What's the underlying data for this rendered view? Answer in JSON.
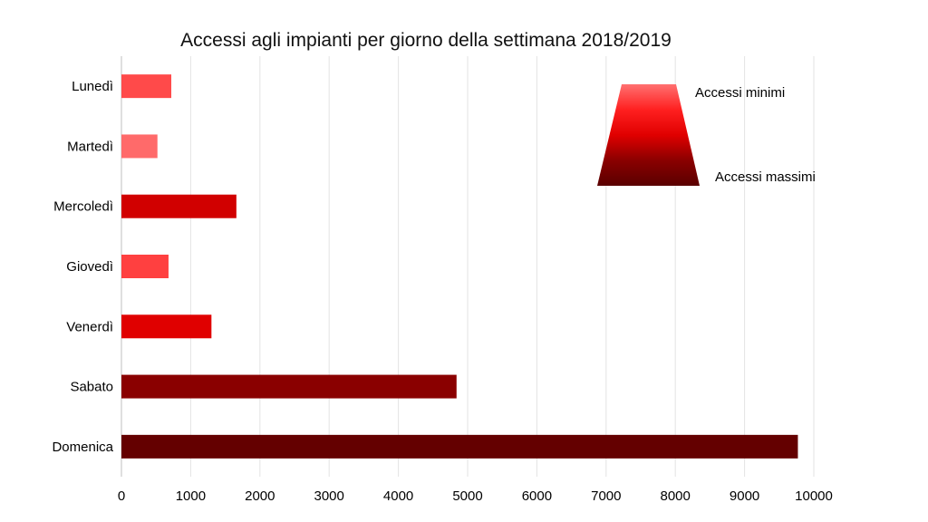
{
  "chart_data": {
    "type": "bar",
    "orientation": "horizontal",
    "title": "Accessi agli impianti per giorno della settimana 2018/2019",
    "categories": [
      "Lunedì",
      "Martedì",
      "Mercoledì",
      "Giovedì",
      "Venerdì",
      "Sabato",
      "Domenica"
    ],
    "values": [
      720,
      520,
      1660,
      680,
      1300,
      4840,
      9770
    ],
    "bar_colors": [
      "#ff4a4a",
      "#ff6a6a",
      "#d10000",
      "#ff4040",
      "#e00000",
      "#8a0000",
      "#640000"
    ],
    "xlim": [
      0,
      10000
    ],
    "xticks": [
      0,
      1000,
      2000,
      3000,
      4000,
      5000,
      6000,
      7000,
      8000,
      9000,
      10000
    ],
    "grid": true,
    "legend": {
      "placement": "top-right",
      "min_label": "Accessi minimi",
      "max_label": "Accessi massimi",
      "gradient_colors": [
        "#ff7070",
        "#ff2020",
        "#e00000",
        "#8a0000",
        "#5a0000"
      ]
    }
  }
}
